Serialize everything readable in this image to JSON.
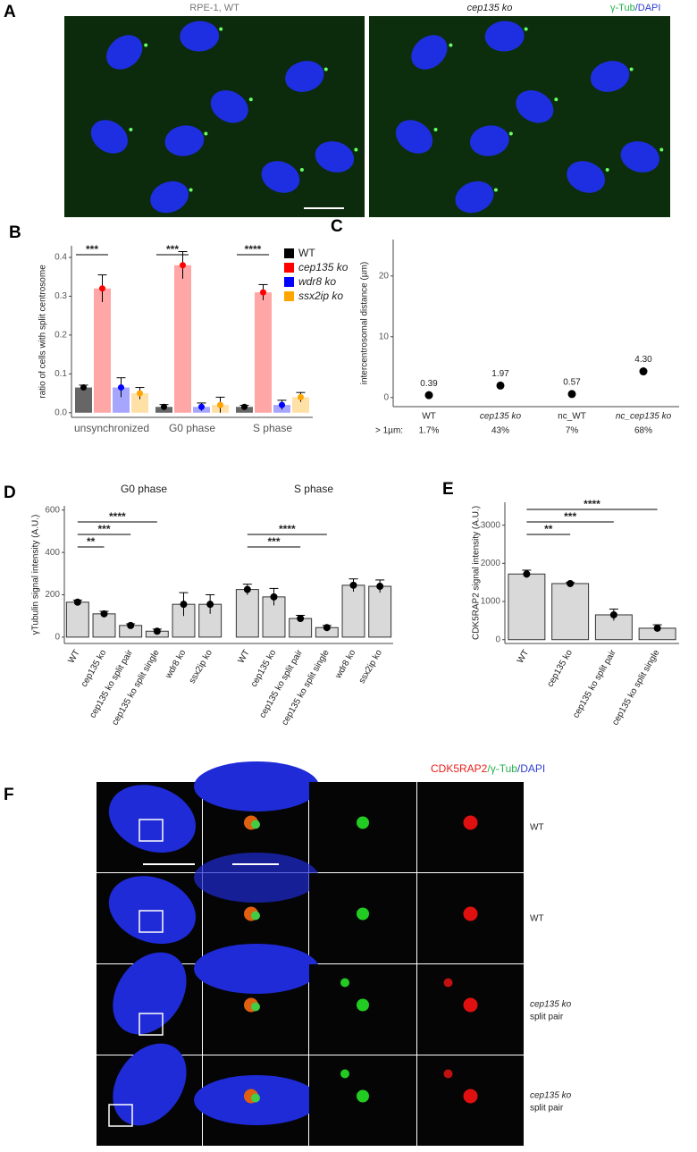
{
  "panel_a": {
    "letter": "A",
    "left_label": "RPE-1, WT",
    "right_label": "cep135 ko",
    "stain": [
      "γ-Tub",
      "/DAPI"
    ]
  },
  "panel_f": {
    "letter": "F",
    "stain": [
      "CDK5RAP2",
      "/γ-Tub",
      "/DAPI"
    ],
    "rows": [
      [
        "WT"
      ],
      [
        "WT"
      ],
      [
        "cep135 ko",
        "split pair"
      ],
      [
        "cep135 ko",
        "split pair"
      ]
    ]
  },
  "chart_data": [
    {
      "panel": "B",
      "type": "bar",
      "ylabel": "ratio of cells with split centrosome",
      "categories": [
        "unsynchronized",
        "G0 phase",
        "S phase"
      ],
      "series": [
        {
          "name": "WT",
          "color": "#000000",
          "values": [
            0.065,
            0.015,
            0.015
          ],
          "errors": [
            0.006,
            0.006,
            0.004
          ]
        },
        {
          "name": "cep135 ko",
          "color": "#ff0000",
          "values": [
            0.32,
            0.38,
            0.31
          ],
          "errors": [
            0.035,
            0.035,
            0.02
          ]
        },
        {
          "name": "wdr8 ko",
          "color": "#0000ff",
          "values": [
            0.065,
            0.015,
            0.02
          ],
          "errors": [
            0.025,
            0.01,
            0.012
          ]
        },
        {
          "name": "ssx2ip ko",
          "color": "#ffa500",
          "values": [
            0.05,
            0.02,
            0.04
          ],
          "errors": [
            0.015,
            0.02,
            0.012
          ]
        }
      ],
      "ylim": [
        -0.012,
        0.43
      ],
      "yticks": [
        {
          "value": 0,
          "label": "0.0"
        },
        0.1,
        0.2,
        0.3,
        0.4
      ],
      "annotations": [
        "***",
        "***",
        "****"
      ]
    },
    {
      "panel": "C",
      "type": "scatter",
      "ylabel": "intercentrosomal distance (µm)",
      "categories": [
        "WT",
        "cep135 ko",
        "nc_WT",
        "nc_cep135 ko"
      ],
      "values": [
        0.39,
        1.97,
        0.57,
        4.3
      ],
      "value_labels": [
        "0.39",
        "1.97",
        "0.57",
        "4.30"
      ],
      "ylim": [
        -1.5,
        26
      ],
      "yticks": [
        0,
        10,
        20
      ],
      "row_label": "> 1µm:",
      "above_1um": [
        1.7,
        43,
        7,
        68
      ],
      "above_1um_labels": [
        "1.7%",
        "43%",
        "7%",
        "68%"
      ]
    },
    {
      "panel": "D",
      "type": "bar",
      "ylabel": "γTubulin signal intensity (A.U.)",
      "color": "#d9d9d9",
      "categories": [
        "WT",
        "cep135 ko",
        "cep135 ko split pair",
        "cep135 ko split single",
        "wdr8 ko",
        "ssx2ip ko"
      ],
      "facets": [
        {
          "title": "G0 phase",
          "values": [
            165,
            110,
            55,
            28,
            155,
            155
          ],
          "errors": [
            10,
            12,
            8,
            10,
            55,
            45
          ],
          "annotations": [
            "**",
            "***",
            "****"
          ]
        },
        {
          "title": "S phase",
          "values": [
            225,
            190,
            88,
            45,
            245,
            240
          ],
          "errors": [
            25,
            40,
            15,
            10,
            30,
            30
          ],
          "annotations": [
            "***",
            "****"
          ]
        }
      ],
      "ylim": [
        -30,
        620
      ],
      "yticks": [
        0,
        200,
        400,
        600
      ]
    },
    {
      "panel": "E",
      "type": "bar",
      "ylabel": "CDK5RAP2 signal intensity (A.U.)",
      "color": "#d9d9d9",
      "categories": [
        "WT",
        "cep135 ko",
        "cep135 ko split pair",
        "cep135 ko split single"
      ],
      "values": [
        1720,
        1470,
        650,
        300
      ],
      "errors": [
        100,
        30,
        150,
        90
      ],
      "annotations": [
        "**",
        "***",
        "****"
      ],
      "ylim": [
        -100,
        3600
      ],
      "yticks": [
        0,
        1000,
        2000,
        3000
      ]
    }
  ]
}
